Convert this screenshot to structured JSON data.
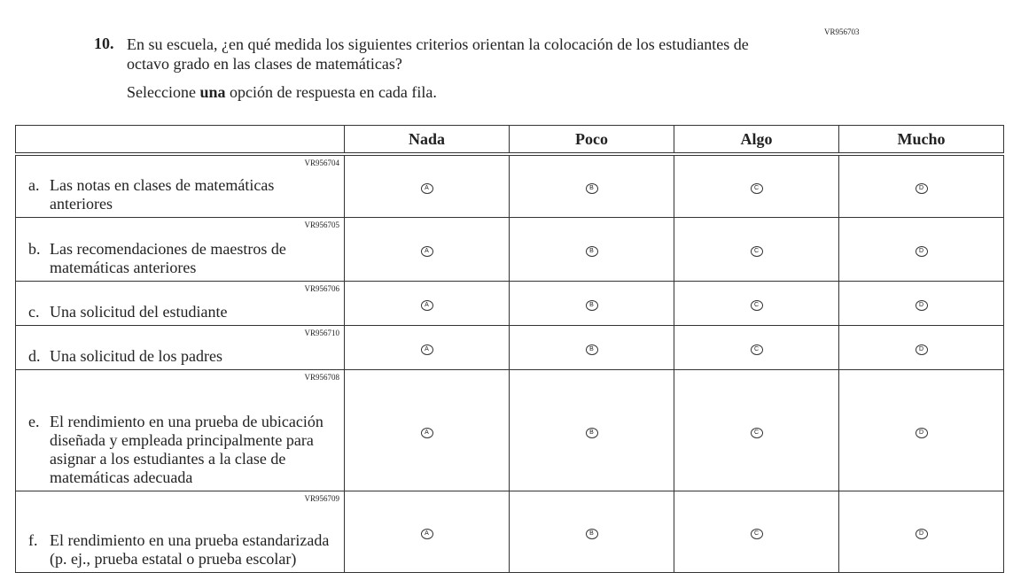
{
  "question": {
    "id": "VR956703",
    "number": "10.",
    "text": "En su escuela, ¿en qué medida los siguientes criterios orientan la colocación de los estudiantes de octavo grado en las clases de matemáticas?",
    "instruction_pre": "Seleccione ",
    "instruction_bold": "una",
    "instruction_post": " opción de respuesta en cada fila."
  },
  "columns": [
    "Nada",
    "Poco",
    "Algo",
    "Mucho"
  ],
  "option_letters": [
    "A",
    "B",
    "C",
    "D"
  ],
  "rows": [
    {
      "code": "VR956704",
      "letter": "a.",
      "text": "Las notas en clases de matemáticas anteriores"
    },
    {
      "code": "VR956705",
      "letter": "b.",
      "text": "Las recomendaciones de maestros de matemáticas anteriores"
    },
    {
      "code": "VR956706",
      "letter": "c.",
      "text": "Una solicitud del estudiante"
    },
    {
      "code": "VR956710",
      "letter": "d.",
      "text": "Una solicitud de los padres"
    },
    {
      "code": "VR956708",
      "letter": "e.",
      "text": "El rendimiento en una prueba de ubicación diseñada y empleada principalmente para asignar a los estudiantes a la clase de matemáticas adecuada"
    },
    {
      "code": "VR956709",
      "letter": "f.",
      "text": "El rendimiento en una prueba estandarizada (p. ej., prueba estatal o prueba escolar)"
    }
  ]
}
